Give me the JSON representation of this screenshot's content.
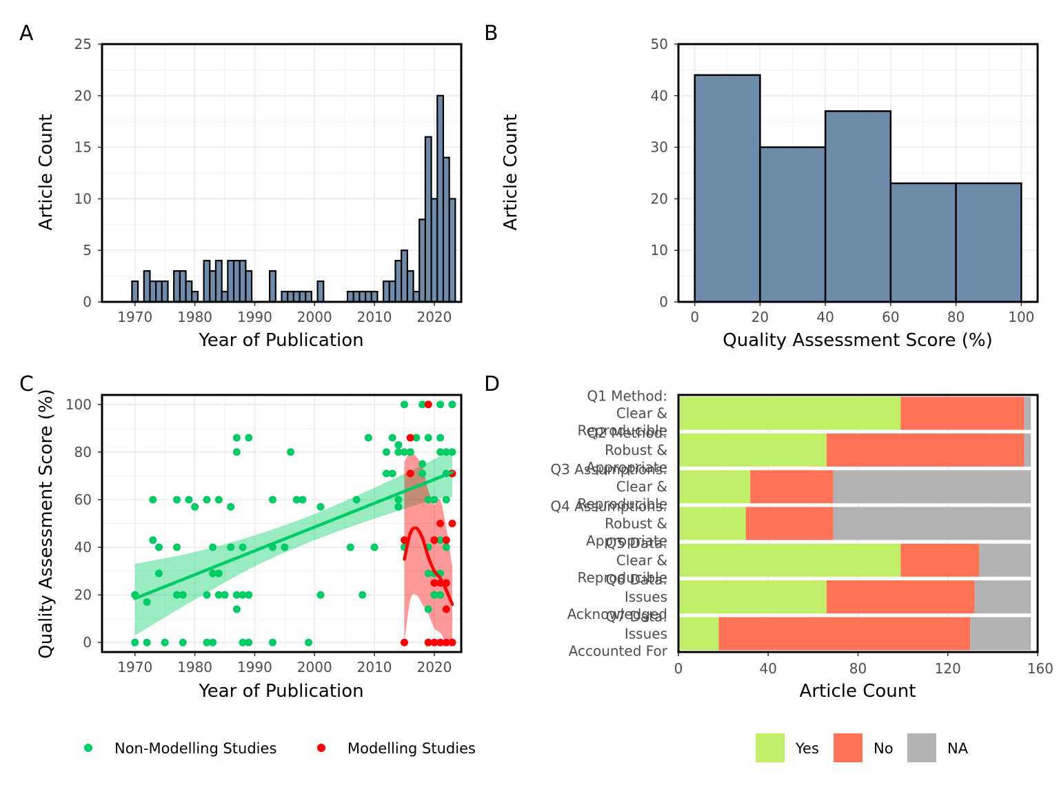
{
  "chart_data": [
    {
      "panel": "A",
      "type": "bar",
      "xlabel": "Year of Publication",
      "ylabel": "Article Count",
      "xlim": [
        1964.5,
        2024.5
      ],
      "ylim": [
        0,
        25
      ],
      "xticks": [
        1970,
        1980,
        1990,
        2000,
        2010,
        2020
      ],
      "yticks": [
        0,
        5,
        10,
        15,
        20,
        25
      ],
      "bar_color": "#6e8caa",
      "x": [
        1970,
        1971,
        1972,
        1973,
        1974,
        1975,
        1976,
        1977,
        1978,
        1979,
        1980,
        1981,
        1982,
        1983,
        1984,
        1985,
        1986,
        1987,
        1988,
        1989,
        1990,
        1991,
        1992,
        1993,
        1994,
        1995,
        1996,
        1997,
        1998,
        1999,
        2000,
        2001,
        2002,
        2003,
        2004,
        2005,
        2006,
        2007,
        2008,
        2009,
        2010,
        2011,
        2012,
        2013,
        2014,
        2015,
        2016,
        2017,
        2018,
        2019,
        2020,
        2021,
        2022,
        2023
      ],
      "values": [
        2,
        0,
        3,
        2,
        2,
        2,
        0,
        3,
        3,
        2,
        1,
        0,
        4,
        3,
        4,
        1,
        4,
        4,
        4,
        3,
        0,
        0,
        0,
        3,
        0,
        1,
        1,
        1,
        1,
        1,
        0,
        2,
        0,
        0,
        0,
        0,
        1,
        1,
        1,
        1,
        1,
        0,
        2,
        2,
        4,
        5,
        3,
        1,
        8,
        16,
        10,
        20,
        14,
        10
      ]
    },
    {
      "panel": "B",
      "type": "bar",
      "xlabel": "Quality Assessment Score (%)",
      "ylabel": "Article Count",
      "xlim": [
        -5,
        105
      ],
      "ylim": [
        0,
        50
      ],
      "xticks": [
        0,
        20,
        40,
        60,
        80,
        100
      ],
      "yticks": [
        0,
        10,
        20,
        30,
        40,
        50
      ],
      "bar_color": "#6e8caa",
      "bins": [
        [
          0,
          20
        ],
        [
          20,
          40
        ],
        [
          40,
          60
        ],
        [
          60,
          80
        ],
        [
          80,
          100
        ]
      ],
      "values": [
        44,
        30,
        37,
        23,
        23
      ]
    },
    {
      "panel": "C",
      "type": "scatter",
      "xlabel": "Year of Publication",
      "ylabel": "Quality Assessment Score (%)",
      "xlim": [
        1964.5,
        2024.5
      ],
      "ylim": [
        -4,
        104
      ],
      "xticks": [
        1970,
        1980,
        1990,
        2000,
        2010,
        2020
      ],
      "yticks": [
        0,
        20,
        40,
        60,
        80,
        100
      ],
      "series": [
        {
          "name": "Non-Modelling Studies",
          "color": "#00cc66",
          "points": [
            [
              1970,
              20
            ],
            [
              1970,
              0
            ],
            [
              1972,
              17
            ],
            [
              1972,
              0
            ],
            [
              1973,
              60
            ],
            [
              1973,
              43
            ],
            [
              1974,
              40
            ],
            [
              1974,
              29
            ],
            [
              1975,
              0
            ],
            [
              1977,
              60
            ],
            [
              1977,
              40
            ],
            [
              1977,
              20
            ],
            [
              1978,
              20
            ],
            [
              1978,
              0
            ],
            [
              1979,
              60
            ],
            [
              1980,
              57
            ],
            [
              1982,
              60
            ],
            [
              1982,
              20
            ],
            [
              1982,
              0
            ],
            [
              1983,
              40
            ],
            [
              1983,
              29
            ],
            [
              1983,
              0
            ],
            [
              1984,
              60
            ],
            [
              1984,
              29
            ],
            [
              1984,
              20
            ],
            [
              1985,
              20
            ],
            [
              1986,
              57
            ],
            [
              1986,
              40
            ],
            [
              1987,
              86
            ],
            [
              1987,
              80
            ],
            [
              1987,
              20
            ],
            [
              1987,
              14
            ],
            [
              1988,
              40
            ],
            [
              1988,
              20
            ],
            [
              1988,
              0
            ],
            [
              1989,
              86
            ],
            [
              1989,
              20
            ],
            [
              1989,
              0
            ],
            [
              1993,
              60
            ],
            [
              1993,
              40
            ],
            [
              1993,
              0
            ],
            [
              1995,
              40
            ],
            [
              1996,
              80
            ],
            [
              1997,
              60
            ],
            [
              1998,
              60
            ],
            [
              1999,
              0
            ],
            [
              2001,
              57
            ],
            [
              2001,
              20
            ],
            [
              2006,
              40
            ],
            [
              2007,
              60
            ],
            [
              2008,
              20
            ],
            [
              2009,
              86
            ],
            [
              2010,
              40
            ],
            [
              2012,
              80
            ],
            [
              2012,
              71
            ],
            [
              2013,
              86
            ],
            [
              2013,
              71
            ],
            [
              2014,
              83
            ],
            [
              2014,
              80
            ],
            [
              2014,
              60
            ],
            [
              2014,
              57
            ],
            [
              2015,
              100
            ],
            [
              2015,
              80
            ],
            [
              2015,
              40
            ],
            [
              2016,
              80
            ],
            [
              2017,
              86
            ],
            [
              2018,
              100
            ],
            [
              2018,
              75
            ],
            [
              2018,
              71
            ],
            [
              2019,
              86
            ],
            [
              2019,
              60
            ],
            [
              2019,
              40
            ],
            [
              2019,
              29
            ],
            [
              2019,
              14
            ],
            [
              2020,
              60
            ],
            [
              2020,
              29
            ],
            [
              2020,
              20
            ],
            [
              2021,
              100
            ],
            [
              2021,
              86
            ],
            [
              2021,
              80
            ],
            [
              2021,
              43
            ],
            [
              2021,
              29
            ],
            [
              2021,
              20
            ],
            [
              2022,
              80
            ],
            [
              2022,
              71
            ],
            [
              2022,
              60
            ],
            [
              2022,
              40
            ],
            [
              2023,
              100
            ],
            [
              2023,
              80
            ]
          ]
        },
        {
          "name": "Modelling Studies",
          "color": "#ff0000",
          "points": [
            [
              2015,
              43
            ],
            [
              2015,
              0
            ],
            [
              2016,
              86
            ],
            [
              2016,
              71
            ],
            [
              2019,
              100
            ],
            [
              2019,
              0
            ],
            [
              2020,
              43
            ],
            [
              2020,
              25
            ],
            [
              2020,
              0
            ],
            [
              2021,
              50
            ],
            [
              2021,
              25
            ],
            [
              2021,
              0
            ],
            [
              2022,
              43
            ],
            [
              2022,
              25
            ],
            [
              2022,
              14
            ],
            [
              2022,
              0
            ],
            [
              2023,
              71
            ],
            [
              2023,
              50
            ],
            [
              2023,
              0
            ]
          ]
        }
      ],
      "fits": [
        {
          "series": "Non-Modelling Studies",
          "color": "#00cc66",
          "method": "linear",
          "x": [
            1970,
            1980,
            1990,
            2000,
            2010,
            2020,
            2023
          ],
          "y": [
            18.5,
            28.5,
            38.5,
            48.5,
            58.5,
            68.5,
            71.5
          ],
          "lo": [
            3,
            18,
            32,
            43,
            52,
            60,
            61
          ],
          "hi": [
            33,
            38,
            45,
            54,
            65,
            77,
            82
          ]
        },
        {
          "series": "Modelling Studies",
          "color": "#ff0000",
          "method": "loess",
          "x": [
            2015,
            2016,
            2017,
            2018,
            2019,
            2020,
            2021,
            2022,
            2023
          ],
          "y": [
            35,
            46,
            48,
            44,
            36,
            30,
            27,
            22,
            16
          ],
          "lo": [
            0,
            18,
            20,
            16,
            12,
            6,
            4,
            0,
            0
          ],
          "hi": [
            76,
            80,
            78,
            74,
            64,
            58,
            60,
            48,
            32
          ]
        }
      ],
      "legend": "bottom"
    },
    {
      "panel": "D",
      "type": "bar",
      "orientation": "horizontal",
      "stacked": true,
      "xlabel": "Article Count",
      "xlim": [
        0,
        160
      ],
      "xticks": [
        0,
        40,
        80,
        120,
        160
      ],
      "categories": [
        "Q1 Method: Clear & Reproducible",
        "Q2 Method: Robust & Appropriate",
        "Q3 Assumptions: Clear & Reproducible",
        "Q4 Assumptions: Robust & Appropriate",
        "Q5 Data: Clear & Reproducible",
        "Q6 Data: Issues Acknowledged",
        "Q7 Data: Issues Accounted For"
      ],
      "category_lines": [
        [
          "Q1 Method:",
          "Clear &",
          "Reproducible"
        ],
        [
          "Q2 Method:",
          "Robust &",
          "Appropriate"
        ],
        [
          "Q3 Assumptions:",
          "Clear &",
          "Reproducible"
        ],
        [
          "Q4 Assumptions:",
          "Robust &",
          "Appropriate"
        ],
        [
          "Q5 Data:",
          "Clear &",
          "Reproducible"
        ],
        [
          "Q6 Data:",
          "Issues",
          "Acknowledged"
        ],
        [
          "Q7 Data:",
          "Issues",
          "Accounted For"
        ]
      ],
      "series": [
        {
          "name": "Yes",
          "color": "#c0ee66",
          "values": [
            99,
            66,
            32,
            30,
            99,
            66,
            18
          ]
        },
        {
          "name": "No",
          "color": "#ff7256",
          "values": [
            55,
            88,
            37,
            39,
            35,
            66,
            112
          ]
        },
        {
          "name": "NA",
          "color": "#b3b3b3",
          "values": [
            3,
            3,
            88,
            88,
            23,
            25,
            27
          ]
        }
      ],
      "legend": "bottom"
    }
  ]
}
